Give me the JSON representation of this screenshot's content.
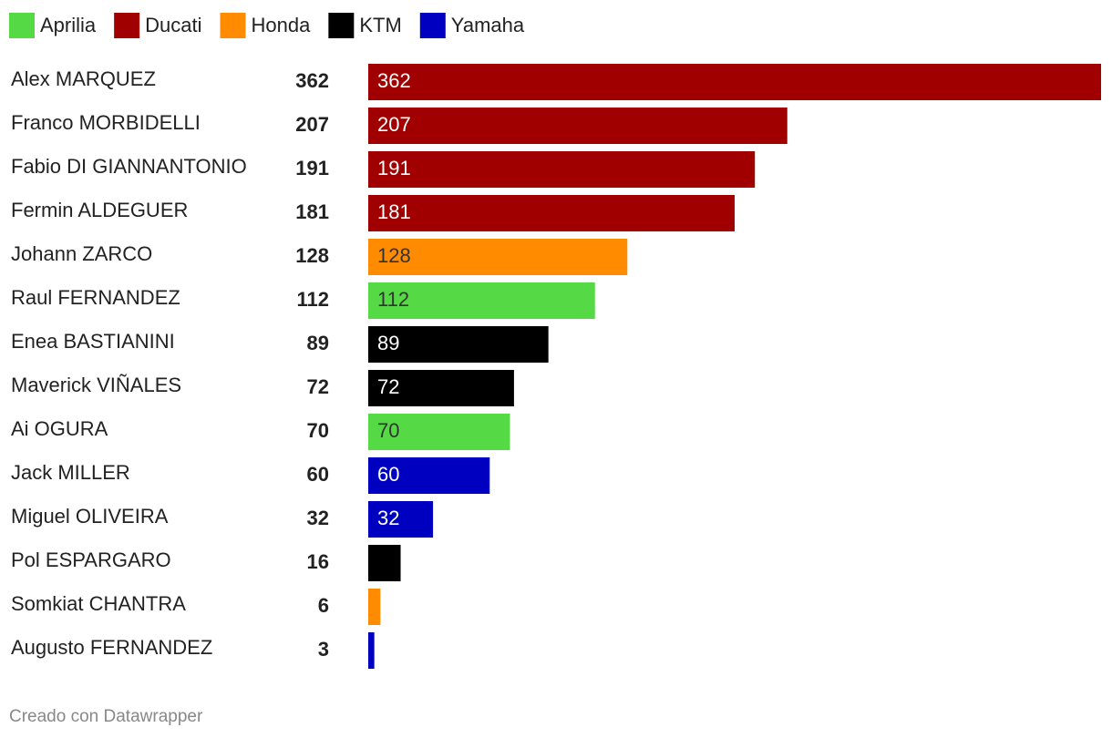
{
  "chart_data": {
    "type": "bar",
    "categories": [
      "Alex MARQUEZ",
      "Franco MORBIDELLI",
      "Fabio DI GIANNANTONIO",
      "Fermin ALDEGUER",
      "Johann ZARCO",
      "Raul FERNANDEZ",
      "Enea BASTIANINI",
      "Maverick VIÑALES",
      "Ai OGURA",
      "Jack MILLER",
      "Miguel OLIVEIRA",
      "Pol ESPARGARO",
      "Somkiat CHANTRA",
      "Augusto FERNANDEZ"
    ],
    "series": [
      {
        "name": "Aprilia",
        "color": "#55d944",
        "values": [
          null,
          null,
          null,
          null,
          null,
          112,
          null,
          null,
          70,
          null,
          null,
          null,
          null,
          null
        ]
      },
      {
        "name": "Ducati",
        "color": "#a00000",
        "values": [
          362,
          207,
          191,
          181,
          null,
          null,
          null,
          null,
          null,
          null,
          null,
          null,
          null,
          null
        ]
      },
      {
        "name": "Honda",
        "color": "#ff8c00",
        "values": [
          null,
          null,
          null,
          null,
          128,
          null,
          null,
          null,
          null,
          null,
          null,
          null,
          6,
          null
        ]
      },
      {
        "name": "KTM",
        "color": "#000000",
        "values": [
          null,
          null,
          null,
          null,
          null,
          null,
          89,
          72,
          null,
          null,
          null,
          16,
          null,
          null
        ]
      },
      {
        "name": "Yamaha",
        "color": "#0000c0",
        "values": [
          null,
          null,
          null,
          null,
          null,
          null,
          null,
          null,
          null,
          60,
          32,
          null,
          null,
          3
        ]
      }
    ],
    "xlim": [
      0,
      362
    ],
    "credit": "Creado con Datawrapper"
  }
}
